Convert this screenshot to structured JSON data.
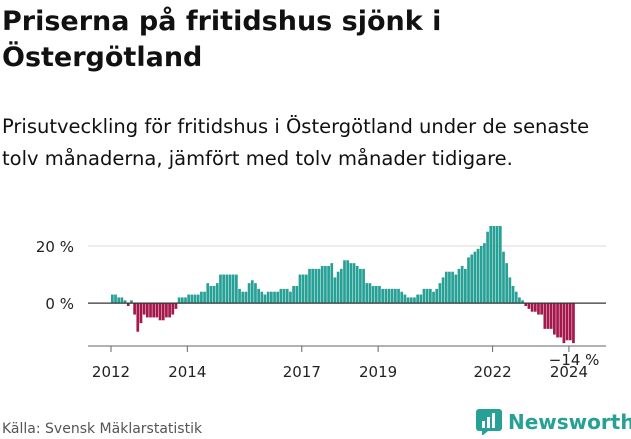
{
  "title": "Priserna på fritidshus sjönk i Östergötland",
  "subtitle": "Prisutveckling för fritidshus i Östergötland under de senaste tolv månaderna, jämfört med tolv månader tidigare.",
  "source": "Källa: Svensk Mäklarstatistik",
  "brand": {
    "name": "Newsworthy",
    "icon": "newsworthy-chart-icon"
  },
  "colors": {
    "positive": "#27a096",
    "negative": "#a3174a",
    "axis": "#666666",
    "grid": "#d8d8d8"
  },
  "chart_data": {
    "type": "bar",
    "title": "Priserna på fritidshus sjönk i Östergötland",
    "xlabel": "",
    "ylabel": "",
    "ylim": [
      -15,
      27
    ],
    "yticks": [
      0,
      20
    ],
    "ytick_labels": [
      "0 %",
      "20 %"
    ],
    "xticks": [
      2012,
      2014,
      2017,
      2019,
      2022,
      2024
    ],
    "xtick_labels": [
      "2012",
      "2014",
      "2017",
      "2019",
      "2022",
      "2024"
    ],
    "x_start": 2012.0,
    "x_end": 2024.5,
    "start_year": 2012,
    "start_month": 1,
    "series": [
      {
        "name": "Prisutveckling",
        "values": [
          3,
          3,
          2,
          2,
          1,
          -1,
          1,
          -4,
          -10,
          -7,
          -4,
          -5,
          -5,
          -5,
          -5,
          -6,
          -6,
          -5,
          -5,
          -4,
          -2,
          2,
          2,
          2,
          3,
          3,
          3,
          3,
          4,
          4,
          7,
          6,
          6,
          7,
          10,
          10,
          10,
          10,
          10,
          10,
          5,
          4,
          4,
          7,
          8,
          7,
          5,
          4,
          3,
          4,
          4,
          4,
          4,
          5,
          5,
          5,
          4,
          6,
          6,
          10,
          10,
          10,
          12,
          12,
          12,
          12,
          13,
          13,
          13,
          14,
          9,
          11,
          12,
          15,
          15,
          14,
          14,
          13,
          12,
          12,
          7,
          7,
          6,
          6,
          6,
          5,
          5,
          5,
          5,
          5,
          5,
          4,
          3,
          2,
          2,
          2,
          3,
          3,
          5,
          5,
          5,
          4,
          5,
          7,
          9,
          11,
          11,
          11,
          10,
          12,
          13,
          12,
          16,
          17,
          18,
          19,
          20,
          21,
          25,
          27,
          27,
          27,
          27,
          18,
          14,
          9,
          6,
          4,
          2,
          1,
          -1,
          -2,
          -3,
          -3,
          -4,
          -4,
          -9,
          -9,
          -9,
          -11,
          -12,
          -12,
          -14,
          -13,
          -13,
          -14
        ]
      }
    ],
    "annotations": [
      {
        "text": "−14 %",
        "position": "last-bar"
      }
    ]
  }
}
